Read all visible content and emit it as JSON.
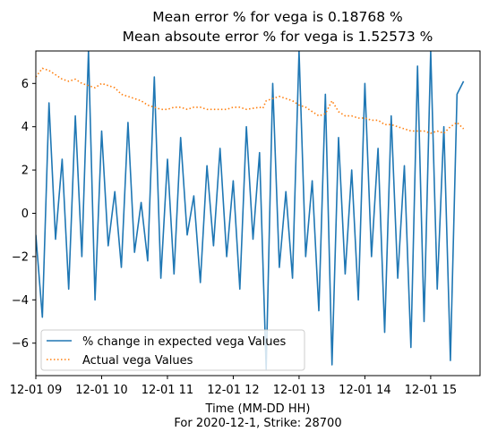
{
  "chart_data": {
    "type": "line",
    "title_line1": "Mean error % for vega is 0.18768 %",
    "title_line2": "Mean absoute error % for vega is 1.52573 %",
    "xlabel_line1": "Time (MM-DD HH)",
    "xlabel_line2": "For 2020-12-1, Strike: 28700",
    "xlim": [
      9.0,
      15.75
    ],
    "ylim": [
      -7.5,
      7.5
    ],
    "x_ticks": [
      {
        "value": 9.0,
        "label": "12-01 09"
      },
      {
        "value": 10.0,
        "label": "12-01 10"
      },
      {
        "value": 11.0,
        "label": "12-01 11"
      },
      {
        "value": 12.0,
        "label": "12-01 12"
      },
      {
        "value": 13.0,
        "label": "12-01 13"
      },
      {
        "value": 14.0,
        "label": "12-01 14"
      },
      {
        "value": 15.0,
        "label": "12-01 15"
      }
    ],
    "y_ticks": [
      {
        "value": -6,
        "label": "−6"
      },
      {
        "value": -4,
        "label": "−4"
      },
      {
        "value": -2,
        "label": "−2"
      },
      {
        "value": 0,
        "label": "0"
      },
      {
        "value": 2,
        "label": "2"
      },
      {
        "value": 4,
        "label": "4"
      },
      {
        "value": 6,
        "label": "6"
      }
    ],
    "grid": false,
    "legend_position": "lower-left",
    "series": [
      {
        "name": "% change in expected vega Values",
        "style": "solid",
        "color": "#1f77b4",
        "x": [
          9.0,
          9.1,
          9.2,
          9.3,
          9.4,
          9.5,
          9.6,
          9.7,
          9.8,
          9.9,
          10.0,
          10.1,
          10.2,
          10.3,
          10.4,
          10.5,
          10.6,
          10.7,
          10.8,
          10.9,
          11.0,
          11.1,
          11.2,
          11.3,
          11.4,
          11.5,
          11.6,
          11.7,
          11.8,
          11.9,
          12.0,
          12.1,
          12.2,
          12.3,
          12.4,
          12.5,
          12.6,
          12.7,
          12.8,
          12.9,
          13.0,
          13.1,
          13.2,
          13.3,
          13.4,
          13.5,
          13.6,
          13.7,
          13.8,
          13.9,
          14.0,
          14.1,
          14.2,
          14.3,
          14.4,
          14.5,
          14.6,
          14.7,
          14.8,
          14.9,
          15.0,
          15.1,
          15.2,
          15.3,
          15.4,
          15.5
        ],
        "y": [
          -1.0,
          -4.8,
          5.1,
          -1.2,
          2.5,
          -3.5,
          4.5,
          -2.0,
          7.5,
          -4.0,
          3.8,
          -1.5,
          1.0,
          -2.5,
          4.2,
          -1.8,
          0.5,
          -2.2,
          6.3,
          -3.0,
          2.5,
          -2.8,
          3.5,
          -1.0,
          0.8,
          -3.2,
          2.2,
          -1.5,
          3.0,
          -2.0,
          1.5,
          -3.5,
          4.0,
          -1.2,
          2.8,
          -7.2,
          6.0,
          -2.5,
          1.0,
          -3.0,
          7.5,
          -2.0,
          1.5,
          -4.5,
          5.5,
          -7.0,
          3.5,
          -2.8,
          2.0,
          -4.0,
          6.0,
          -2.0,
          3.0,
          -5.5,
          4.5,
          -3.0,
          2.2,
          -6.2,
          6.8,
          -5.0,
          7.5,
          -3.5,
          4.0,
          -6.8,
          5.5,
          6.1
        ]
      },
      {
        "name": "Actual vega Values",
        "style": "dotted",
        "color": "#ff7f0e",
        "x": [
          9.0,
          9.1,
          9.2,
          9.3,
          9.4,
          9.5,
          9.6,
          9.7,
          9.8,
          9.9,
          10.0,
          10.1,
          10.2,
          10.3,
          10.4,
          10.5,
          10.6,
          10.7,
          10.8,
          10.9,
          11.0,
          11.1,
          11.2,
          11.3,
          11.4,
          11.5,
          11.6,
          11.7,
          11.8,
          11.9,
          12.0,
          12.1,
          12.2,
          12.3,
          12.4,
          12.45,
          12.5,
          12.6,
          12.7,
          12.8,
          12.9,
          13.0,
          13.1,
          13.2,
          13.3,
          13.4,
          13.5,
          13.6,
          13.7,
          13.8,
          13.9,
          14.0,
          14.1,
          14.2,
          14.3,
          14.4,
          14.5,
          14.6,
          14.7,
          14.8,
          14.9,
          15.0,
          15.1,
          15.2,
          15.3,
          15.4,
          15.5
        ],
        "y": [
          6.3,
          6.7,
          6.6,
          6.4,
          6.2,
          6.1,
          6.2,
          6.0,
          5.9,
          5.8,
          6.0,
          5.9,
          5.8,
          5.5,
          5.4,
          5.3,
          5.2,
          5.0,
          4.9,
          4.8,
          4.8,
          4.9,
          4.9,
          4.8,
          4.9,
          4.9,
          4.8,
          4.8,
          4.8,
          4.8,
          4.9,
          4.9,
          4.8,
          4.85,
          4.9,
          4.85,
          5.2,
          5.3,
          5.4,
          5.3,
          5.2,
          5.0,
          4.9,
          4.7,
          4.5,
          4.6,
          5.2,
          4.7,
          4.5,
          4.5,
          4.4,
          4.4,
          4.3,
          4.3,
          4.1,
          4.1,
          4.0,
          3.9,
          3.8,
          3.8,
          3.8,
          3.7,
          3.8,
          3.7,
          4.0,
          4.2,
          3.9
        ]
      }
    ]
  }
}
